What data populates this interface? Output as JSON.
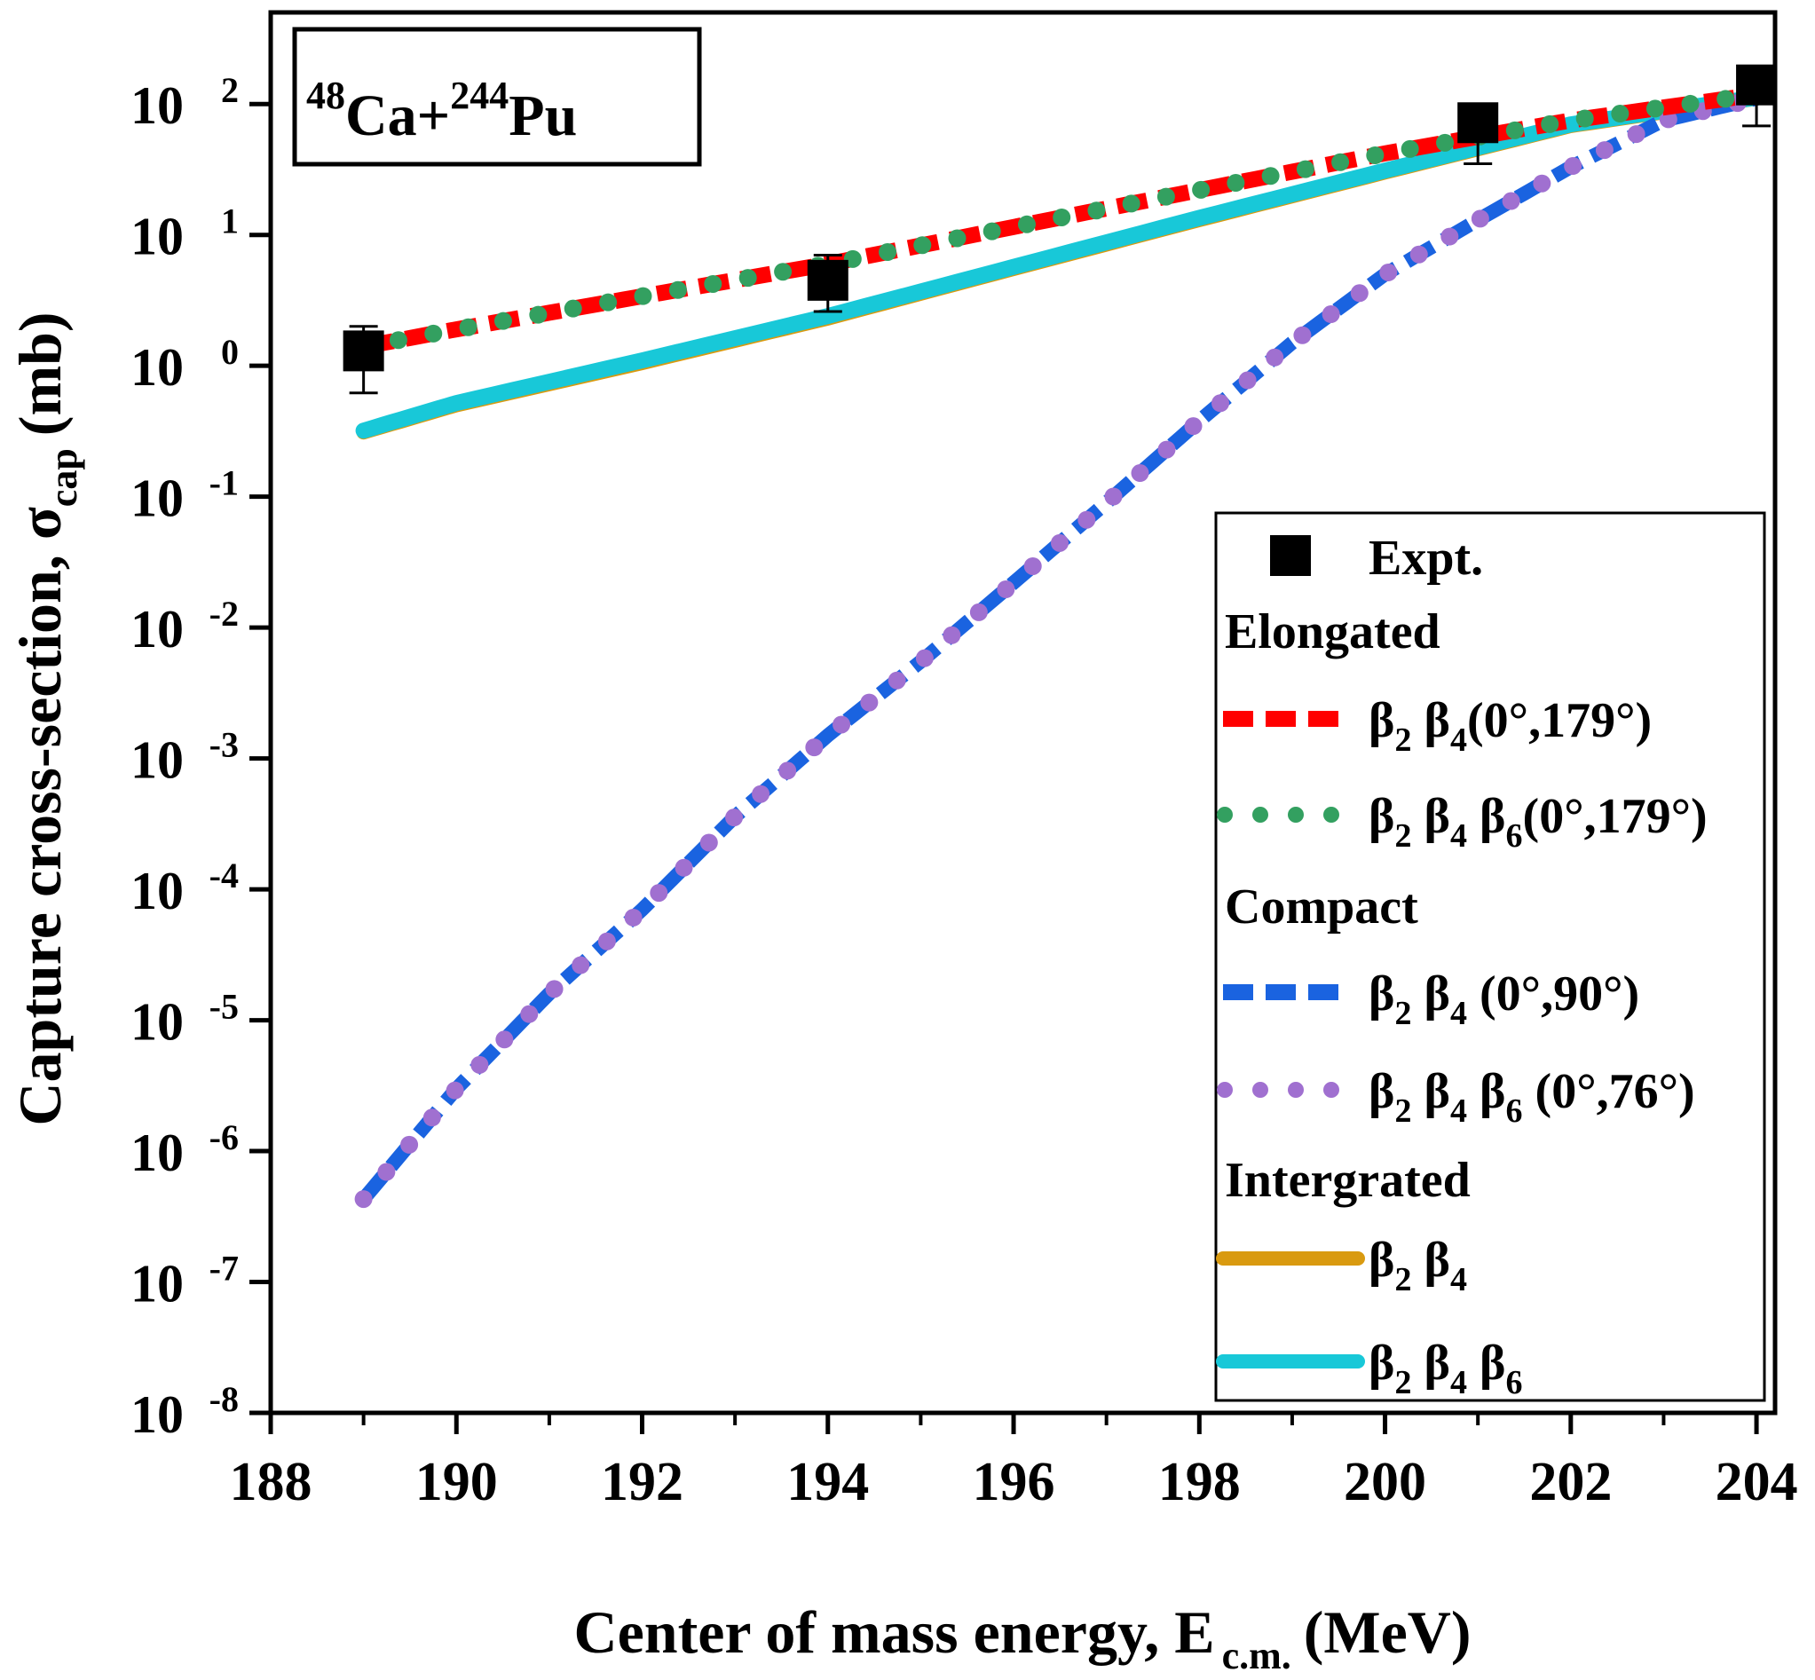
{
  "chart_data": {
    "type": "line",
    "title": "",
    "inset_label": {
      "mass1": "48",
      "el1": "Ca",
      "plus": "+",
      "mass2": "244",
      "el2": "Pu"
    },
    "xlabel": {
      "main": "Center of mass energy, E",
      "sub": "c.m.",
      "unit": "(MeV)"
    },
    "ylabel": {
      "main": "Capture cross-section, σ",
      "sub": "cap",
      "unit": "(mb)"
    },
    "xlim": [
      188,
      204.2
    ],
    "ylim_log10": [
      -8,
      2.7
    ],
    "y_scale": "log",
    "grid": false,
    "legend_position": "right",
    "x_ticks": [
      "188",
      "190",
      "192",
      "194",
      "196",
      "198",
      "200",
      "202",
      "204"
    ],
    "x_tick_values": [
      188,
      190,
      192,
      194,
      196,
      198,
      200,
      202,
      204
    ],
    "y_ticks": [
      {
        "exp": -8,
        "base": "10",
        "sup": "-8"
      },
      {
        "exp": -7,
        "base": "10",
        "sup": "-7"
      },
      {
        "exp": -6,
        "base": "10",
        "sup": "-6"
      },
      {
        "exp": -5,
        "base": "10",
        "sup": "-5"
      },
      {
        "exp": -4,
        "base": "10",
        "sup": "-4"
      },
      {
        "exp": -3,
        "base": "10",
        "sup": "-3"
      },
      {
        "exp": -2,
        "base": "10",
        "sup": "-2"
      },
      {
        "exp": -1,
        "base": "10",
        "sup": "-1"
      },
      {
        "exp": 0,
        "base": "10",
        "sup": "0"
      },
      {
        "exp": 1,
        "base": "10",
        "sup": "1"
      },
      {
        "exp": 2,
        "base": "10",
        "sup": "2"
      }
    ],
    "experiment": {
      "label": "Expt.",
      "points": [
        {
          "x": 189.0,
          "y": 1.3,
          "ylo": 0.62,
          "yhi": 2.0
        },
        {
          "x": 194.0,
          "y": 4.5,
          "ylo": 2.6,
          "yhi": 7.0
        },
        {
          "x": 201.0,
          "y": 72,
          "ylo": 35,
          "yhi": 90
        },
        {
          "x": 204.0,
          "y": 140,
          "ylo": 68,
          "yhi": 180
        }
      ]
    },
    "legend_groups": [
      "Elongated",
      "Compact",
      "Intergrated"
    ],
    "series": [
      {
        "group": 0,
        "color": "#ff0000",
        "style": "dash",
        "width": 18,
        "legend": {
          "parts": [
            [
              "β",
              "2"
            ],
            [
              "β",
              "4"
            ]
          ],
          "tail": "(0°,179°)"
        },
        "x": [
          189,
          190,
          192,
          194,
          196,
          198,
          200,
          202,
          204
        ],
        "y": [
          1.4,
          1.9,
          3.4,
          6.0,
          11.5,
          22,
          42,
          75,
          118
        ]
      },
      {
        "group": 0,
        "color": "#33a060",
        "style": "dot",
        "width": 20,
        "legend": {
          "parts": [
            [
              "β",
              "2"
            ],
            [
              "β",
              "4"
            ],
            [
              "β",
              "6"
            ]
          ],
          "tail": "(0°,179°)"
        },
        "x": [
          189,
          190,
          192,
          194,
          196,
          198,
          200,
          202,
          204
        ],
        "y": [
          1.4,
          1.9,
          3.4,
          6.0,
          11.5,
          22,
          42,
          75,
          118
        ]
      },
      {
        "group": 1,
        "color": "#1a63e0",
        "style": "dash",
        "width": 16,
        "legend": {
          "parts": [
            [
              "β",
              "2"
            ],
            [
              "β",
              "4"
            ]
          ],
          "tail": " (0°,90°)"
        },
        "x": [
          189,
          190,
          191,
          192,
          193,
          194,
          195,
          196,
          197,
          198,
          199,
          200,
          201,
          202,
          203,
          204
        ],
        "y": [
          4.3e-07,
          3e-06,
          1.6e-05,
          7e-05,
          0.00036,
          0.0015,
          0.0055,
          0.022,
          0.09,
          0.38,
          1.5,
          5,
          13,
          33,
          75,
          110
        ]
      },
      {
        "group": 1,
        "color": "#a070d0",
        "style": "dot",
        "width": 20,
        "legend": {
          "parts": [
            [
              "β",
              "2"
            ],
            [
              "β",
              "4"
            ],
            [
              "β",
              "6"
            ]
          ],
          "tail": " (0°,76°)"
        },
        "x": [
          189,
          190,
          191,
          192,
          193,
          194,
          195,
          196,
          197,
          198,
          199,
          200,
          201,
          202,
          203,
          204
        ],
        "y": [
          4.3e-07,
          3e-06,
          1.6e-05,
          7e-05,
          0.00036,
          0.0015,
          0.0055,
          0.022,
          0.09,
          0.38,
          1.5,
          5,
          13,
          33,
          75,
          110
        ]
      },
      {
        "group": 2,
        "color": "#d99a10",
        "style": "solid",
        "width": 16,
        "legend": {
          "parts": [
            [
              "β",
              "2"
            ],
            [
              "β",
              "4"
            ]
          ],
          "tail": ""
        },
        "x": [
          189,
          190,
          192,
          194,
          196,
          198,
          200,
          202,
          204
        ],
        "y": [
          0.31,
          0.5,
          1.05,
          2.3,
          5.5,
          13,
          30,
          68,
          110
        ]
      },
      {
        "group": 2,
        "color": "#18c8d8",
        "style": "solid",
        "width": 18,
        "legend": {
          "parts": [
            [
              "β",
              "2"
            ],
            [
              "β",
              "4"
            ],
            [
              "β",
              "6"
            ]
          ],
          "tail": ""
        },
        "x": [
          189,
          190,
          192,
          194,
          196,
          198,
          200,
          202,
          204
        ],
        "y": [
          0.32,
          0.52,
          1.1,
          2.4,
          5.7,
          13.5,
          31,
          70,
          112
        ]
      }
    ]
  }
}
